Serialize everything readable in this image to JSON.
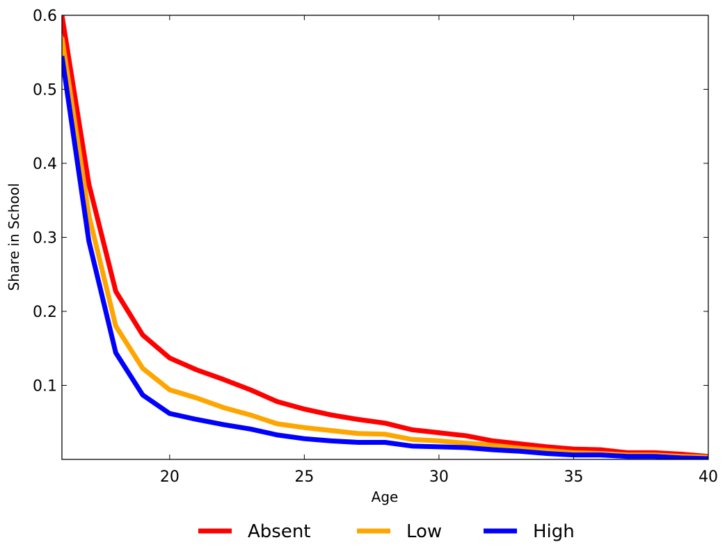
{
  "chart_data": {
    "type": "line",
    "title": "",
    "xlabel": "Age",
    "ylabel": "Share in School",
    "xlim": [
      16,
      40
    ],
    "ylim": [
      0.0,
      0.6
    ],
    "xticks": [
      20,
      25,
      30,
      35,
      40
    ],
    "xtick_labels": [
      "20",
      "25",
      "30",
      "35",
      "40"
    ],
    "yticks": [
      0.1,
      0.2,
      0.3,
      0.4,
      0.5,
      0.6
    ],
    "ytick_labels": [
      "0.1",
      "0.2",
      "0.3",
      "0.4",
      "0.5",
      "0.6"
    ],
    "grid": false,
    "legend_position": "bottom-center",
    "x": [
      16,
      17,
      18,
      19,
      20,
      21,
      22,
      23,
      24,
      25,
      26,
      27,
      28,
      29,
      30,
      31,
      32,
      33,
      34,
      35,
      36,
      37,
      38,
      39,
      40
    ],
    "series": [
      {
        "name": "Absent",
        "color": "#ff0000",
        "values": [
          0.6,
          0.372,
          0.227,
          0.168,
          0.137,
          0.121,
          0.108,
          0.094,
          0.078,
          0.068,
          0.06,
          0.054,
          0.049,
          0.04,
          0.036,
          0.032,
          0.025,
          0.021,
          0.017,
          0.014,
          0.013,
          0.009,
          0.009,
          0.007,
          0.004
        ]
      },
      {
        "name": "Low",
        "color": "#ffa500",
        "values": [
          0.57,
          0.33,
          0.18,
          0.123,
          0.094,
          0.083,
          0.07,
          0.06,
          0.048,
          0.043,
          0.039,
          0.035,
          0.034,
          0.027,
          0.025,
          0.022,
          0.019,
          0.015,
          0.012,
          0.009,
          0.008,
          0.006,
          0.006,
          0.004,
          0.003
        ]
      },
      {
        "name": "High",
        "color": "#0000ff",
        "values": [
          0.545,
          0.295,
          0.144,
          0.087,
          0.062,
          0.054,
          0.047,
          0.041,
          0.033,
          0.028,
          0.025,
          0.023,
          0.023,
          0.018,
          0.017,
          0.016,
          0.013,
          0.011,
          0.008,
          0.006,
          0.006,
          0.004,
          0.004,
          0.002,
          0.001
        ]
      }
    ]
  }
}
